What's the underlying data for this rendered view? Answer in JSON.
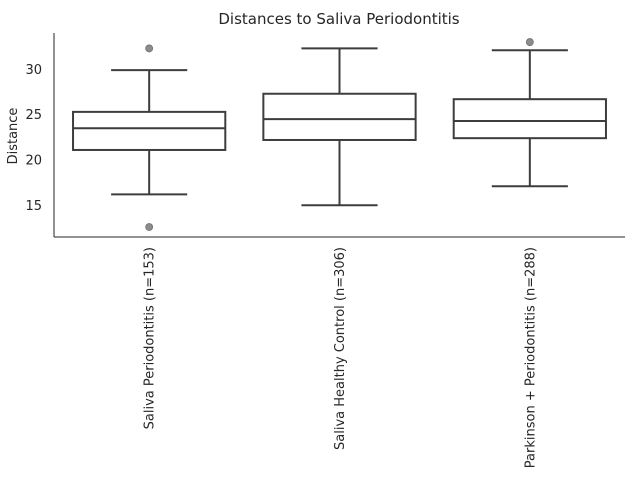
{
  "chart_data": {
    "type": "box",
    "title": "Distances to Saliva Periodontitis",
    "xlabel": "",
    "ylabel": "Distance",
    "ylim": [
      11.5,
      34.0
    ],
    "yticks": [
      15,
      20,
      25,
      30
    ],
    "grid": false,
    "categories": [
      "Saliva Periodontitis (n=153)",
      "Saliva Healthy Control (n=306)",
      "Parkinson + Periodontitis (n=288)"
    ],
    "boxes": [
      {
        "whisker_low": 16.2,
        "q1": 21.1,
        "median": 23.5,
        "q3": 25.3,
        "whisker_high": 29.9,
        "outliers": [
          32.3,
          12.6
        ]
      },
      {
        "whisker_low": 15.0,
        "q1": 22.2,
        "median": 24.5,
        "q3": 27.3,
        "whisker_high": 32.3,
        "outliers": []
      },
      {
        "whisker_low": 17.1,
        "q1": 22.4,
        "median": 24.3,
        "q3": 26.7,
        "whisker_high": 32.1,
        "outliers": [
          33.0
        ]
      }
    ]
  }
}
